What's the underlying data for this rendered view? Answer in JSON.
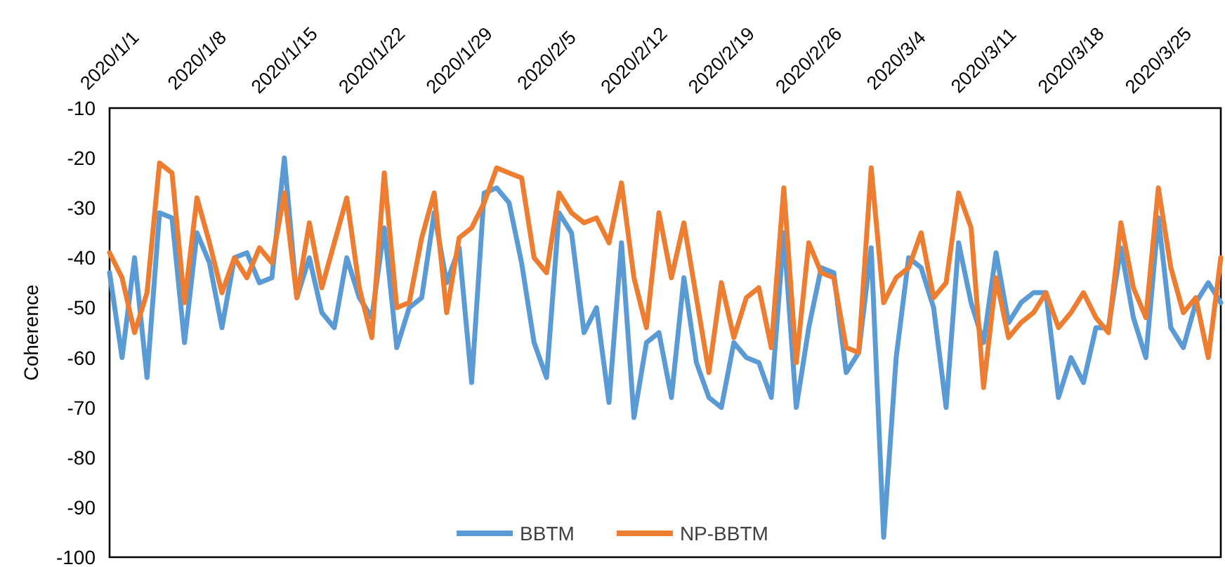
{
  "chart_data": {
    "type": "line",
    "ylabel": "Coherence",
    "legend": "bottom",
    "marker": "none",
    "line_style": "solid",
    "grid": false,
    "xlim": [
      "2020-01-01",
      "2020-03-30"
    ],
    "xticks": [
      {
        "value": "2020-01-01",
        "label": "2020/1/1"
      },
      {
        "value": "2020-01-08",
        "label": "2020/1/8"
      },
      {
        "value": "2020-01-15",
        "label": "2020/1/15"
      },
      {
        "value": "2020-01-22",
        "label": "2020/1/22"
      },
      {
        "value": "2020-01-29",
        "label": "2020/1/29"
      },
      {
        "value": "2020-02-05",
        "label": "2020/2/5"
      },
      {
        "value": "2020-02-12",
        "label": "2020/2/12"
      },
      {
        "value": "2020-02-19",
        "label": "2020/2/19"
      },
      {
        "value": "2020-02-26",
        "label": "2020/2/26"
      },
      {
        "value": "2020-03-04",
        "label": "2020/3/4"
      },
      {
        "value": "2020-03-11",
        "label": "2020/3/11"
      },
      {
        "value": "2020-03-18",
        "label": "2020/3/18"
      },
      {
        "value": "2020-03-25",
        "label": "2020/3/25"
      }
    ],
    "ylim": [
      -100,
      -10
    ],
    "yticks": [
      -100,
      -90,
      -80,
      -70,
      -60,
      -50,
      -40,
      -30,
      -20,
      -10
    ],
    "x": [
      "2020-01-01",
      "2020-01-02",
      "2020-01-03",
      "2020-01-04",
      "2020-01-05",
      "2020-01-06",
      "2020-01-07",
      "2020-01-08",
      "2020-01-09",
      "2020-01-10",
      "2020-01-11",
      "2020-01-12",
      "2020-01-13",
      "2020-01-14",
      "2020-01-15",
      "2020-01-16",
      "2020-01-17",
      "2020-01-18",
      "2020-01-19",
      "2020-01-20",
      "2020-01-21",
      "2020-01-22",
      "2020-01-23",
      "2020-01-24",
      "2020-01-25",
      "2020-01-26",
      "2020-01-27",
      "2020-01-28",
      "2020-01-29",
      "2020-01-30",
      "2020-01-31",
      "2020-02-01",
      "2020-02-02",
      "2020-02-03",
      "2020-02-04",
      "2020-02-05",
      "2020-02-06",
      "2020-02-07",
      "2020-02-08",
      "2020-02-09",
      "2020-02-10",
      "2020-02-11",
      "2020-02-12",
      "2020-02-13",
      "2020-02-14",
      "2020-02-15",
      "2020-02-16",
      "2020-02-17",
      "2020-02-18",
      "2020-02-19",
      "2020-02-20",
      "2020-02-21",
      "2020-02-22",
      "2020-02-23",
      "2020-02-24",
      "2020-02-25",
      "2020-02-26",
      "2020-02-27",
      "2020-02-28",
      "2020-02-29",
      "2020-03-01",
      "2020-03-02",
      "2020-03-03",
      "2020-03-04",
      "2020-03-05",
      "2020-03-06",
      "2020-03-07",
      "2020-03-08",
      "2020-03-09",
      "2020-03-10",
      "2020-03-11",
      "2020-03-12",
      "2020-03-13",
      "2020-03-14",
      "2020-03-15",
      "2020-03-16",
      "2020-03-17",
      "2020-03-18",
      "2020-03-19",
      "2020-03-20",
      "2020-03-21",
      "2020-03-22",
      "2020-03-23",
      "2020-03-24",
      "2020-03-25",
      "2020-03-26",
      "2020-03-27",
      "2020-03-28",
      "2020-03-29",
      "2020-03-30"
    ],
    "series": [
      {
        "name": "BBTM",
        "color": "#5b9bd5",
        "values": [
          -43,
          -60,
          -40,
          -64,
          -31,
          -32,
          -57,
          -35,
          -41,
          -54,
          -40,
          -39,
          -45,
          -44,
          -20,
          -48,
          -40,
          -51,
          -54,
          -40,
          -48,
          -52,
          -34,
          -58,
          -50,
          -48,
          -31,
          -45,
          -38,
          -65,
          -27,
          -26,
          -29,
          -41,
          -57,
          -64,
          -31,
          -35,
          -55,
          -50,
          -69,
          -37,
          -72,
          -57,
          -55,
          -68,
          -44,
          -61,
          -68,
          -70,
          -57,
          -60,
          -61,
          -68,
          -35,
          -70,
          -54,
          -42,
          -43,
          -63,
          -59,
          -38,
          -96,
          -60,
          -40,
          -42,
          -50,
          -70,
          -37,
          -49,
          -57,
          -39,
          -53,
          -49,
          -47,
          -47,
          -68,
          -60,
          -65,
          -54,
          -54,
          -38,
          -52,
          -60,
          -32,
          -54,
          -58,
          -49,
          -45,
          -49
        ]
      },
      {
        "name": "NP-BBTM",
        "color": "#ed7d31",
        "values": [
          -39,
          -44,
          -55,
          -47,
          -21,
          -23,
          -49,
          -28,
          -37,
          -47,
          -40,
          -44,
          -38,
          -41,
          -27,
          -48,
          -33,
          -46,
          -37,
          -28,
          -46,
          -56,
          -23,
          -50,
          -49,
          -36,
          -27,
          -51,
          -36,
          -34,
          -29,
          -22,
          -23,
          -24,
          -40,
          -43,
          -27,
          -31,
          -33,
          -32,
          -37,
          -25,
          -44,
          -54,
          -31,
          -44,
          -33,
          -48,
          -63,
          -45,
          -56,
          -48,
          -46,
          -58,
          -26,
          -61,
          -37,
          -43,
          -44,
          -58,
          -59,
          -22,
          -49,
          -44,
          -42,
          -35,
          -48,
          -45,
          -27,
          -34,
          -66,
          -44,
          -56,
          -53,
          -51,
          -47,
          -54,
          -51,
          -47,
          -52,
          -55,
          -33,
          -46,
          -52,
          -26,
          -42,
          -51,
          -48,
          -60,
          -40
        ]
      }
    ]
  }
}
